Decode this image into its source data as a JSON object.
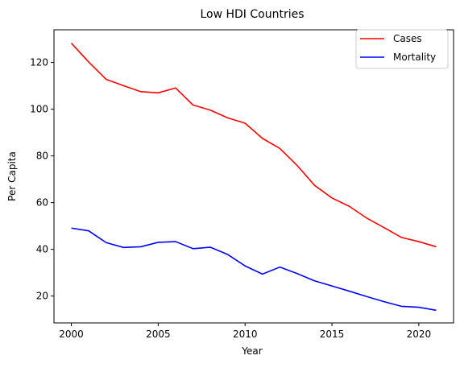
{
  "chart_data": {
    "type": "line",
    "title": "Low HDI Countries",
    "xlabel": "Year",
    "ylabel": "Per Capita",
    "xlim": [
      1999.0,
      2022.0
    ],
    "ylim": [
      8.5,
      134.0
    ],
    "xticks": [
      2000,
      2005,
      2010,
      2015,
      2020
    ],
    "yticks": [
      20,
      40,
      60,
      80,
      100,
      120
    ],
    "grid": false,
    "legend": "top-right",
    "x": [
      2000,
      2001,
      2002,
      2003,
      2004,
      2005,
      2006,
      2007,
      2008,
      2009,
      2010,
      2011,
      2012,
      2013,
      2014,
      2015,
      2016,
      2017,
      2018,
      2019,
      2020,
      2021
    ],
    "series": [
      {
        "name": "Cases",
        "color": "#ff0000",
        "values": [
          128.3,
          120.2,
          112.8,
          110.1,
          107.5,
          107.0,
          109.1,
          101.8,
          99.6,
          96.3,
          94.0,
          87.5,
          83.2,
          75.9,
          67.4,
          62.0,
          58.4,
          53.4,
          49.3,
          45.1,
          43.3,
          41.1
        ]
      },
      {
        "name": "Mortality",
        "color": "#0000ff",
        "values": [
          49.1,
          47.9,
          42.9,
          40.8,
          41.1,
          43.0,
          43.3,
          40.3,
          40.9,
          37.8,
          32.9,
          29.4,
          32.4,
          29.6,
          26.5,
          24.3,
          22.1,
          19.8,
          17.6,
          15.6,
          15.2,
          13.9
        ]
      }
    ]
  }
}
